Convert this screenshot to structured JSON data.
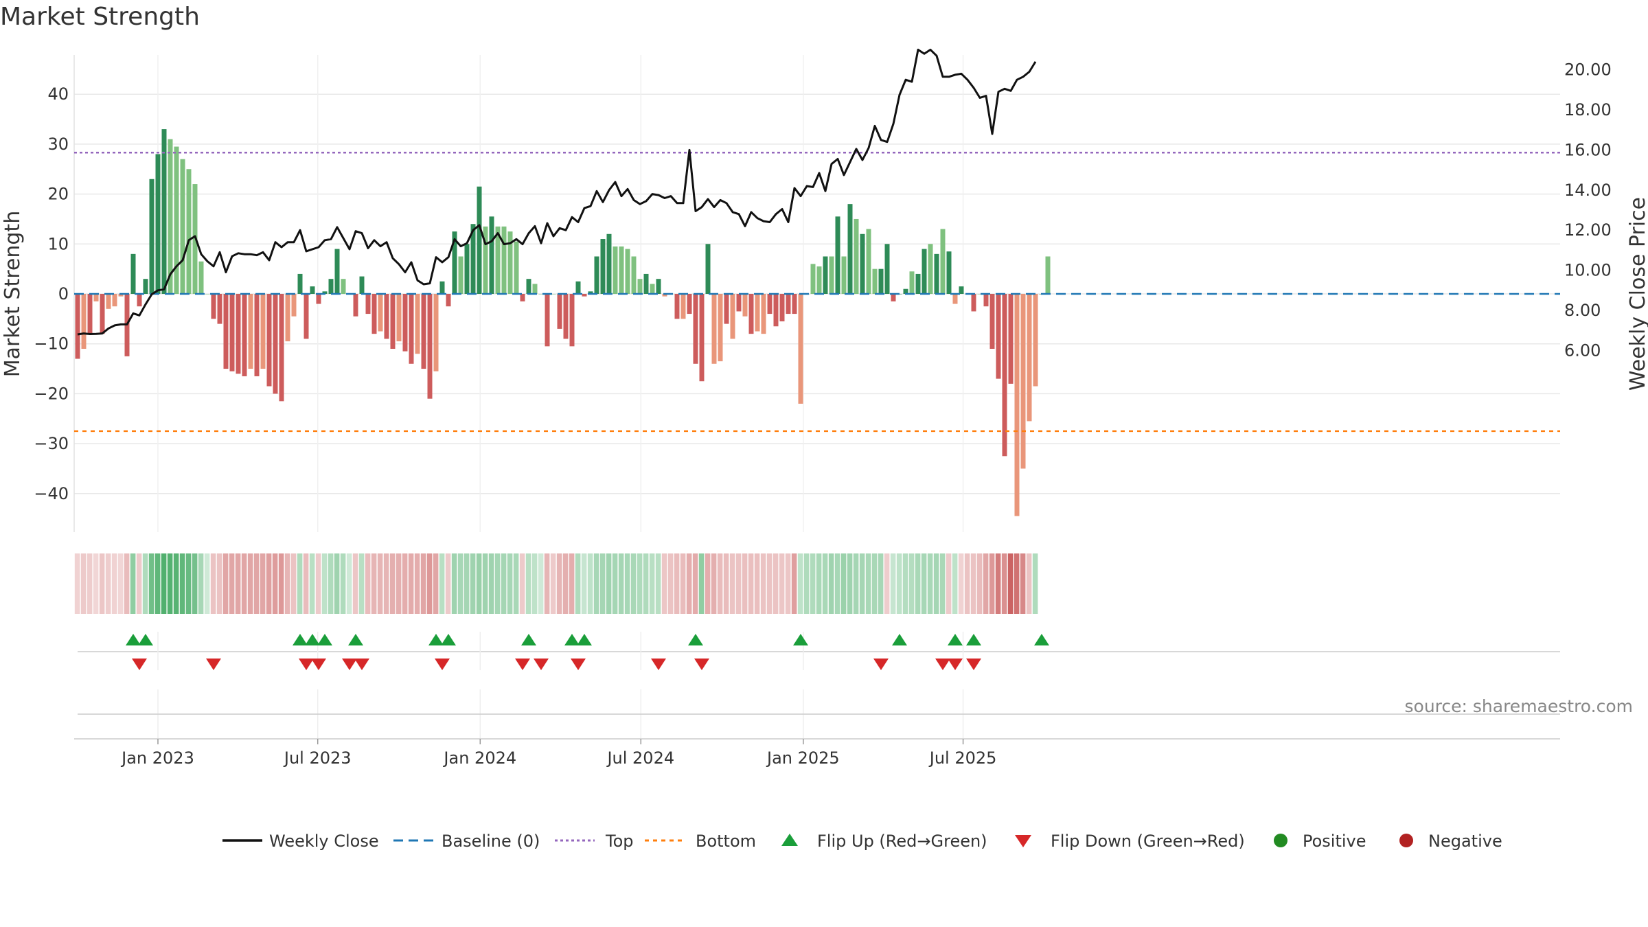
{
  "title": "Market Strength",
  "source": "source: sharemaestro.com",
  "colors": {
    "pos_strong": "#2e8b57",
    "pos_weak": "#7fc17f",
    "neg_strong": "#cd5c5c",
    "neg_weak": "#e9967a",
    "price_line": "#111111",
    "baseline": "#1f77b4",
    "top": "#9467bd",
    "bottom": "#ff7f0e",
    "flip_up": "#1a9e3a",
    "flip_down": "#d62728",
    "positive": "#228b22",
    "negative": "#b22222"
  },
  "chart_data": {
    "type": "bar",
    "start_date": "2022-10-02",
    "y_left": {
      "label": "Market Strength",
      "ticks": [
        40,
        30,
        20,
        10,
        0,
        -10,
        -20,
        -30,
        -40
      ],
      "range": [
        -48,
        48
      ]
    },
    "y_right": {
      "label": "Weekly Close Price",
      "ticks": [
        "20.00",
        "18.00",
        "16.00",
        "14.00",
        "12.00",
        "10.00",
        "8.00",
        "6.00"
      ],
      "range": [
        5.6,
        22.2
      ]
    },
    "x_ticks": [
      {
        "label": "Jan 2023",
        "date": "2023-01-01"
      },
      {
        "label": "Jul 2023",
        "date": "2023-07-01"
      },
      {
        "label": "Jan 2024",
        "date": "2024-01-01"
      },
      {
        "label": "Jul 2024",
        "date": "2024-07-01"
      },
      {
        "label": "Jan 2025",
        "date": "2025-01-01"
      },
      {
        "label": "Jul 2025",
        "date": "2025-07-01"
      }
    ],
    "top_level": 28.3,
    "bottom_level": -27.5,
    "strength": [
      -13,
      -11,
      -8,
      -1.5,
      -8,
      -3,
      -2.5,
      -0.5,
      -12.5,
      8,
      -2.5,
      3,
      23,
      28,
      33,
      31,
      29.5,
      27,
      25,
      22,
      6.5,
      0,
      -5,
      -6,
      -15,
      -15.5,
      -16,
      -16.5,
      -15,
      -16.5,
      -15,
      -18.5,
      -20,
      -21.5,
      -9.5,
      -4.5,
      4,
      -9,
      1.5,
      -2,
      0.5,
      3,
      9,
      3,
      0,
      -4.5,
      3.5,
      -4,
      -8,
      -7.5,
      -9,
      -11,
      -9.5,
      -11.5,
      -14,
      -12,
      -15,
      -21,
      -15.5,
      2.5,
      -2.5,
      12.5,
      7.5,
      10,
      14,
      21.5,
      13.5,
      15.5,
      13.5,
      13.5,
      12.5,
      10.5,
      -1.5,
      3,
      2,
      0,
      -10.5,
      0,
      -7,
      -9,
      -10.5,
      2.5,
      -0.5,
      0.5,
      7.5,
      11,
      12,
      9.5,
      9.5,
      9,
      7.5,
      3,
      4,
      2,
      3,
      -0.5,
      0,
      -5,
      -5,
      -4,
      -14,
      -17.5,
      10,
      -14,
      -13.5,
      -6,
      -9,
      -3.5,
      -4.5,
      -8,
      -7.5,
      -8,
      -4,
      -6.5,
      -5.5,
      -4,
      -4,
      -22,
      0,
      6,
      5.5,
      7.5,
      7.5,
      15.5,
      7.5,
      18,
      15,
      12,
      13,
      5,
      5,
      10,
      -1.5,
      0,
      1,
      4.5,
      4,
      9,
      10,
      8,
      13,
      8.5,
      -2,
      1.5,
      0,
      -3.5,
      0,
      -2.5,
      -11,
      -17,
      -32.5,
      -18,
      -44.5,
      -35,
      -25.5,
      -18.5,
      0,
      7.5
    ],
    "strength_strong": [
      1,
      0,
      1,
      0,
      1,
      0,
      0,
      0,
      1,
      1,
      1,
      1,
      1,
      1,
      1,
      0,
      0,
      0,
      0,
      0,
      0,
      0,
      1,
      1,
      1,
      1,
      1,
      1,
      0,
      1,
      0,
      1,
      1,
      1,
      0,
      0,
      1,
      1,
      1,
      1,
      1,
      1,
      1,
      0,
      0,
      1,
      1,
      1,
      1,
      0,
      1,
      1,
      0,
      1,
      1,
      0,
      1,
      1,
      0,
      1,
      1,
      1,
      0,
      1,
      1,
      1,
      0,
      1,
      0,
      0,
      0,
      0,
      1,
      1,
      0,
      0,
      1,
      0,
      1,
      1,
      1,
      1,
      1,
      1,
      1,
      1,
      1,
      0,
      0,
      0,
      0,
      0,
      1,
      0,
      1,
      0,
      0,
      1,
      0,
      1,
      1,
      1,
      1,
      0,
      0,
      1,
      0,
      1,
      0,
      1,
      0,
      0,
      1,
      1,
      1,
      1,
      1,
      0,
      1,
      0,
      0,
      1,
      0,
      1,
      0,
      1,
      0,
      1,
      0,
      0,
      1,
      1,
      1,
      1,
      1,
      0,
      1,
      1,
      0,
      1,
      0,
      1,
      0,
      1,
      0,
      1,
      0,
      1,
      1,
      1,
      1,
      1,
      0,
      0,
      0,
      0,
      1
    ],
    "weekly_close": [
      6.8,
      6.85,
      6.82,
      6.83,
      6.85,
      7.1,
      7.25,
      7.3,
      7.3,
      7.85,
      7.75,
      8.3,
      8.8,
      9.0,
      9.05,
      9.8,
      10.2,
      10.5,
      11.5,
      11.7,
      10.8,
      10.45,
      10.2,
      10.9,
      9.9,
      10.7,
      10.85,
      10.8,
      10.8,
      10.75,
      10.9,
      10.5,
      11.4,
      11.15,
      11.4,
      11.4,
      12.0,
      10.95,
      11.05,
      11.15,
      11.5,
      11.55,
      12.15,
      11.6,
      11.05,
      11.95,
      11.85,
      11.1,
      11.5,
      11.2,
      11.4,
      10.6,
      10.3,
      9.9,
      10.4,
      9.5,
      9.3,
      9.35,
      10.65,
      10.4,
      10.65,
      11.55,
      11.2,
      11.35,
      12.0,
      12.25,
      11.3,
      11.45,
      11.85,
      11.3,
      11.35,
      11.55,
      11.3,
      11.85,
      12.2,
      11.35,
      12.35,
      11.7,
      12.1,
      12.0,
      12.65,
      12.4,
      13.1,
      13.2,
      13.95,
      13.4,
      14.0,
      14.4,
      13.7,
      14.05,
      13.5,
      13.3,
      13.45,
      13.8,
      13.75,
      13.6,
      13.7,
      13.35,
      13.35,
      16.0,
      12.95,
      13.15,
      13.55,
      13.15,
      13.5,
      13.35,
      12.9,
      12.8,
      12.2,
      12.9,
      12.6,
      12.45,
      12.4,
      12.8,
      13.05,
      12.4,
      14.1,
      13.7,
      14.2,
      14.15,
      14.85,
      13.95,
      15.3,
      15.55,
      14.75,
      15.4,
      16.05,
      15.5,
      16.1,
      17.2,
      16.5,
      16.4,
      17.3,
      18.75,
      19.5,
      19.4,
      21.0,
      20.8,
      21.0,
      20.7,
      19.65,
      19.65,
      19.75,
      19.8,
      19.5,
      19.1,
      18.6,
      18.7,
      16.8,
      18.9,
      19.05,
      18.95,
      19.5,
      19.65,
      19.9,
      20.4
    ],
    "bands": [
      {
        "level": 0.15,
        "color": "neg"
      },
      {
        "level": 0.2,
        "color": "neg"
      },
      {
        "level": 0.18,
        "color": "neg"
      },
      {
        "level": 0.12,
        "color": "neg"
      },
      {
        "level": 0.22,
        "color": "neg"
      },
      {
        "level": 0.18,
        "color": "neg"
      },
      {
        "level": 0.15,
        "color": "neg"
      },
      {
        "level": 0.12,
        "color": "neg"
      },
      {
        "level": 0.3,
        "color": "neg"
      },
      {
        "level": 0.55,
        "color": "pos"
      },
      {
        "level": 0.2,
        "color": "neg"
      },
      {
        "level": 0.35,
        "color": "pos"
      },
      {
        "level": 0.75,
        "color": "pos"
      },
      {
        "level": 0.85,
        "color": "pos"
      },
      {
        "level": 0.95,
        "color": "pos"
      },
      {
        "level": 0.92,
        "color": "pos"
      },
      {
        "level": 0.9,
        "color": "pos"
      },
      {
        "level": 0.85,
        "color": "pos"
      },
      {
        "level": 0.8,
        "color": "pos"
      },
      {
        "level": 0.72,
        "color": "pos"
      },
      {
        "level": 0.4,
        "color": "pos"
      },
      {
        "level": 0.15,
        "color": "pos"
      },
      {
        "level": 0.25,
        "color": "neg"
      },
      {
        "level": 0.25,
        "color": "neg"
      },
      {
        "level": 0.45,
        "color": "neg"
      },
      {
        "level": 0.45,
        "color": "neg"
      },
      {
        "level": 0.45,
        "color": "neg"
      },
      {
        "level": 0.45,
        "color": "neg"
      },
      {
        "level": 0.45,
        "color": "neg"
      },
      {
        "level": 0.45,
        "color": "neg"
      },
      {
        "level": 0.45,
        "color": "neg"
      },
      {
        "level": 0.5,
        "color": "neg"
      },
      {
        "level": 0.52,
        "color": "neg"
      },
      {
        "level": 0.55,
        "color": "neg"
      },
      {
        "level": 0.35,
        "color": "neg"
      },
      {
        "level": 0.25,
        "color": "neg"
      },
      {
        "level": 0.35,
        "color": "pos"
      },
      {
        "level": 0.3,
        "color": "neg"
      },
      {
        "level": 0.3,
        "color": "pos"
      },
      {
        "level": 0.2,
        "color": "neg"
      },
      {
        "level": 0.25,
        "color": "pos"
      },
      {
        "level": 0.35,
        "color": "pos"
      },
      {
        "level": 0.45,
        "color": "pos"
      },
      {
        "level": 0.35,
        "color": "pos"
      },
      {
        "level": 0.15,
        "color": "pos"
      },
      {
        "level": 0.22,
        "color": "neg"
      },
      {
        "level": 0.3,
        "color": "pos"
      },
      {
        "level": 0.3,
        "color": "neg"
      },
      {
        "level": 0.35,
        "color": "neg"
      },
      {
        "level": 0.35,
        "color": "neg"
      },
      {
        "level": 0.35,
        "color": "neg"
      },
      {
        "level": 0.38,
        "color": "neg"
      },
      {
        "level": 0.38,
        "color": "neg"
      },
      {
        "level": 0.4,
        "color": "neg"
      },
      {
        "level": 0.42,
        "color": "neg"
      },
      {
        "level": 0.4,
        "color": "neg"
      },
      {
        "level": 0.45,
        "color": "neg"
      },
      {
        "level": 0.55,
        "color": "neg"
      },
      {
        "level": 0.45,
        "color": "neg"
      },
      {
        "level": 0.3,
        "color": "pos"
      },
      {
        "level": 0.2,
        "color": "neg"
      },
      {
        "level": 0.45,
        "color": "pos"
      },
      {
        "level": 0.4,
        "color": "pos"
      },
      {
        "level": 0.42,
        "color": "pos"
      },
      {
        "level": 0.45,
        "color": "pos"
      },
      {
        "level": 0.5,
        "color": "pos"
      },
      {
        "level": 0.45,
        "color": "pos"
      },
      {
        "level": 0.45,
        "color": "pos"
      },
      {
        "level": 0.42,
        "color": "pos"
      },
      {
        "level": 0.42,
        "color": "pos"
      },
      {
        "level": 0.4,
        "color": "pos"
      },
      {
        "level": 0.38,
        "color": "pos"
      },
      {
        "level": 0.2,
        "color": "neg"
      },
      {
        "level": 0.3,
        "color": "pos"
      },
      {
        "level": 0.25,
        "color": "pos"
      },
      {
        "level": 0.15,
        "color": "pos"
      },
      {
        "level": 0.35,
        "color": "neg"
      },
      {
        "level": 0.2,
        "color": "neg"
      },
      {
        "level": 0.35,
        "color": "neg"
      },
      {
        "level": 0.38,
        "color": "neg"
      },
      {
        "level": 0.4,
        "color": "neg"
      },
      {
        "level": 0.35,
        "color": "pos"
      },
      {
        "level": 0.2,
        "color": "pos"
      },
      {
        "level": 0.25,
        "color": "pos"
      },
      {
        "level": 0.4,
        "color": "pos"
      },
      {
        "level": 0.42,
        "color": "pos"
      },
      {
        "level": 0.45,
        "color": "pos"
      },
      {
        "level": 0.42,
        "color": "pos"
      },
      {
        "level": 0.42,
        "color": "pos"
      },
      {
        "level": 0.4,
        "color": "pos"
      },
      {
        "level": 0.38,
        "color": "pos"
      },
      {
        "level": 0.35,
        "color": "pos"
      },
      {
        "level": 0.35,
        "color": "pos"
      },
      {
        "level": 0.3,
        "color": "pos"
      },
      {
        "level": 0.3,
        "color": "pos"
      },
      {
        "level": 0.22,
        "color": "neg"
      },
      {
        "level": 0.25,
        "color": "neg"
      },
      {
        "level": 0.3,
        "color": "neg"
      },
      {
        "level": 0.3,
        "color": "neg"
      },
      {
        "level": 0.4,
        "color": "neg"
      },
      {
        "level": 0.42,
        "color": "neg"
      },
      {
        "level": 0.55,
        "color": "pos"
      },
      {
        "level": 0.4,
        "color": "neg"
      },
      {
        "level": 0.38,
        "color": "neg"
      },
      {
        "level": 0.3,
        "color": "neg"
      },
      {
        "level": 0.3,
        "color": "neg"
      },
      {
        "level": 0.25,
        "color": "neg"
      },
      {
        "level": 0.25,
        "color": "neg"
      },
      {
        "level": 0.28,
        "color": "neg"
      },
      {
        "level": 0.28,
        "color": "neg"
      },
      {
        "level": 0.28,
        "color": "neg"
      },
      {
        "level": 0.25,
        "color": "neg"
      },
      {
        "level": 0.25,
        "color": "neg"
      },
      {
        "level": 0.25,
        "color": "neg"
      },
      {
        "level": 0.22,
        "color": "neg"
      },
      {
        "level": 0.22,
        "color": "neg"
      },
      {
        "level": 0.5,
        "color": "neg"
      },
      {
        "level": 0.25,
        "color": "pos"
      },
      {
        "level": 0.35,
        "color": "pos"
      },
      {
        "level": 0.35,
        "color": "pos"
      },
      {
        "level": 0.38,
        "color": "pos"
      },
      {
        "level": 0.38,
        "color": "pos"
      },
      {
        "level": 0.45,
        "color": "pos"
      },
      {
        "level": 0.4,
        "color": "pos"
      },
      {
        "level": 0.48,
        "color": "pos"
      },
      {
        "level": 0.45,
        "color": "pos"
      },
      {
        "level": 0.42,
        "color": "pos"
      },
      {
        "level": 0.42,
        "color": "pos"
      },
      {
        "level": 0.38,
        "color": "pos"
      },
      {
        "level": 0.38,
        "color": "pos"
      },
      {
        "level": 0.4,
        "color": "pos"
      },
      {
        "level": 0.18,
        "color": "neg"
      },
      {
        "level": 0.2,
        "color": "pos"
      },
      {
        "level": 0.25,
        "color": "pos"
      },
      {
        "level": 0.32,
        "color": "pos"
      },
      {
        "level": 0.32,
        "color": "pos"
      },
      {
        "level": 0.38,
        "color": "pos"
      },
      {
        "level": 0.4,
        "color": "pos"
      },
      {
        "level": 0.38,
        "color": "pos"
      },
      {
        "level": 0.42,
        "color": "pos"
      },
      {
        "level": 0.38,
        "color": "pos"
      },
      {
        "level": 0.2,
        "color": "neg"
      },
      {
        "level": 0.25,
        "color": "pos"
      },
      {
        "level": 0.15,
        "color": "neg"
      },
      {
        "level": 0.25,
        "color": "neg"
      },
      {
        "level": 0.25,
        "color": "neg"
      },
      {
        "level": 0.3,
        "color": "neg"
      },
      {
        "level": 0.45,
        "color": "neg"
      },
      {
        "level": 0.55,
        "color": "neg"
      },
      {
        "level": 0.75,
        "color": "neg"
      },
      {
        "level": 0.6,
        "color": "neg"
      },
      {
        "level": 0.9,
        "color": "neg"
      },
      {
        "level": 0.8,
        "color": "neg"
      },
      {
        "level": 0.65,
        "color": "neg"
      },
      {
        "level": 0.25,
        "color": "neg"
      },
      {
        "level": 0.35,
        "color": "pos"
      }
    ],
    "flip_up_weeks": [
      9,
      11,
      36,
      38,
      40,
      45,
      58,
      60,
      73,
      80,
      82,
      100,
      117,
      133,
      142,
      145,
      156
    ],
    "flip_down_weeks": [
      10,
      22,
      37,
      39,
      44,
      46,
      59,
      72,
      75,
      81,
      94,
      101,
      130,
      140,
      142,
      145
    ],
    "legend": [
      "Weekly Close",
      "Baseline (0)",
      "Top",
      "Bottom",
      "Flip Up (Red→Green)",
      "Flip Down (Green→Red)",
      "Positive",
      "Negative"
    ]
  }
}
